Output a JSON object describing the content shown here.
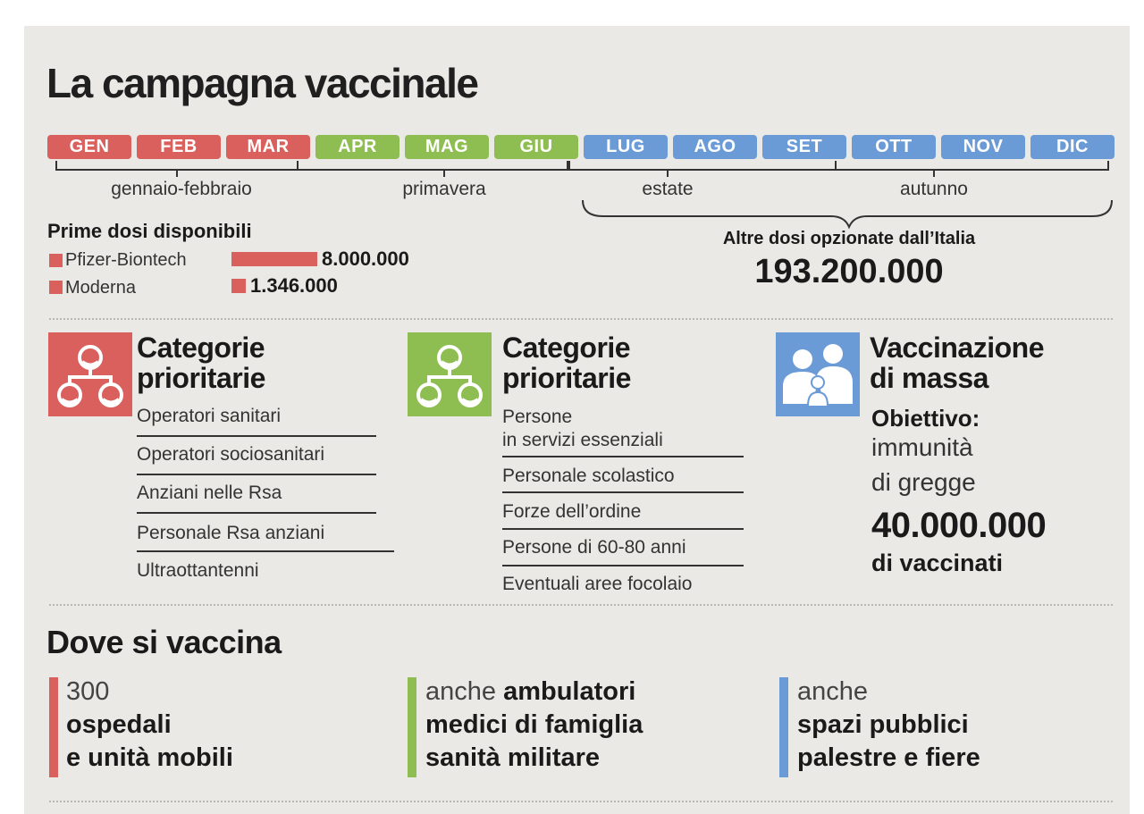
{
  "title": "La campagna vaccinale",
  "colors": {
    "red": "#d9605c",
    "green": "#8ebe52",
    "blue": "#6b9bd6",
    "panel": "#ebe9e5"
  },
  "months": [
    "GEN",
    "FEB",
    "MAR",
    "APR",
    "MAG",
    "GIU",
    "LUG",
    "AGO",
    "SET",
    "OTT",
    "NOV",
    "DIC"
  ],
  "seasons": [
    "gennaio-febbraio",
    "primavera",
    "estate",
    "autunno"
  ],
  "first_doses": {
    "heading": "Prime dosi disponibili",
    "items": [
      {
        "name": "Pfizer-Biontech",
        "value": "8.000.000",
        "amount": 8000000
      },
      {
        "name": "Moderna",
        "value": "1.346.000",
        "amount": 1346000
      }
    ]
  },
  "other_doses": {
    "heading": "Altre dosi opzionate dall’Italia",
    "value": "193.200.000"
  },
  "categories": [
    {
      "title_line1": "Categorie",
      "title_line2": "prioritarie",
      "icon": "group-icon",
      "color": "#d9605c",
      "items": [
        "Operatori sanitari",
        "Operatori sociosanitari",
        "Anziani nelle Rsa",
        "Personale Rsa anziani",
        "Ultraottantenni"
      ]
    },
    {
      "title_line1": "Categorie",
      "title_line2": "prioritarie",
      "icon": "group-icon",
      "color": "#8ebe52",
      "items_first_line1": "Persone",
      "items_first_line2": "in servizi essenziali",
      "items": [
        "Personale scolastico",
        "Forze dell’ordine",
        "Persone di 60-80 anni",
        "Eventuali aree focolaio"
      ]
    }
  ],
  "mass": {
    "title_line1": "Vaccinazione",
    "title_line2": "di massa",
    "icon": "family-icon",
    "goal_label": "Obiettivo:",
    "goal_line1": "immunità",
    "goal_line2": "di gregge",
    "target": "40.000.000",
    "target_label": "di vaccinati"
  },
  "where": {
    "title": "Dove si vaccina",
    "col1": {
      "line1": "300",
      "line2": "ospedali",
      "line3": "e unità mobili"
    },
    "col2": {
      "prefix": "anche ",
      "line1_bold": "ambulatori",
      "line2": "medici di famiglia",
      "line3": "sanità militare"
    },
    "col3": {
      "line1": "anche",
      "line2": "spazi pubblici",
      "line3": "palestre e fiere"
    }
  }
}
